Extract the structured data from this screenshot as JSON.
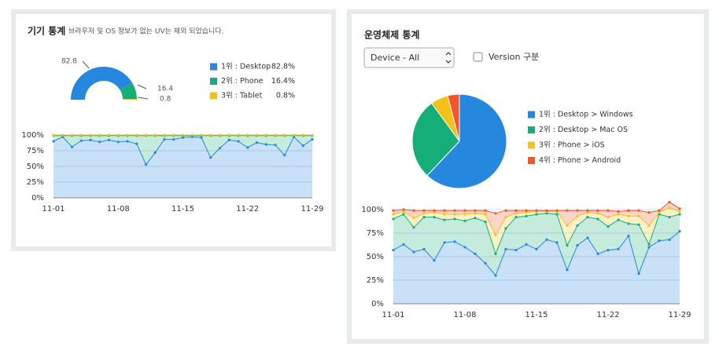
{
  "left_panel": {
    "title": "기기 통계",
    "subtitle": "브라우저 및 OS 정보가 없는 UV는 제외 되었습니다."
  },
  "right_panel": {
    "title": "운영체제 통계",
    "select": "Device - All",
    "checkbox": "Version 구분"
  },
  "chart_data": [
    {
      "type": "donut",
      "categories": [
        "1위 : Desktop",
        "2위 : Phone",
        "3위 : Tablet"
      ],
      "values": [
        82.8,
        16.4,
        0.8
      ],
      "value_labels": [
        "82.8%",
        "16.4%",
        "0.8%"
      ],
      "colors": [
        "#2587dd",
        "#16ae78",
        "#f2c21b"
      ]
    },
    {
      "type": "area",
      "categories": [
        "11-01",
        null,
        null,
        null,
        null,
        null,
        null,
        "11-08",
        null,
        null,
        null,
        null,
        null,
        null,
        "11-15",
        null,
        null,
        null,
        null,
        null,
        null,
        "11-22",
        null,
        null,
        null,
        null,
        null,
        null,
        "11-29"
      ],
      "ylim": [
        0,
        100
      ],
      "yticks": [
        {
          "value": 0,
          "label": "0%"
        },
        {
          "value": 25,
          "label": "25%"
        },
        {
          "value": 50,
          "label": "50%"
        },
        {
          "value": 75,
          "label": "75%"
        },
        {
          "value": 100,
          "label": "100%"
        }
      ],
      "grid": true,
      "series": [
        {
          "color": "#2587dd",
          "values": [
            90,
            97,
            81,
            91,
            92,
            89,
            92,
            89,
            90,
            86,
            53,
            72,
            93,
            93,
            96,
            97,
            96,
            64,
            79,
            92,
            90,
            80,
            88,
            85,
            84,
            68,
            97,
            83,
            93
          ]
        },
        {
          "color": "#16ae78",
          "values": [
            9,
            2,
            18,
            8,
            7,
            10,
            7,
            10,
            9,
            13,
            46,
            27,
            6,
            6,
            3,
            2,
            3,
            35,
            20,
            7,
            9,
            19,
            11,
            14,
            15,
            31,
            2,
            16,
            6
          ]
        },
        {
          "color": "#f2c21b",
          "values": [
            1,
            1,
            1,
            1,
            1,
            1,
            1,
            1,
            1,
            1,
            1,
            1,
            1,
            1,
            1,
            1,
            1,
            1,
            1,
            1,
            1,
            1,
            1,
            1,
            1,
            1,
            1,
            1,
            1
          ]
        }
      ]
    },
    {
      "type": "pie",
      "categories": [
        "1위 : Desktop > Windows",
        "2위 : Desktop > Mac OS",
        "3위 : Phone > iOS",
        "4위 : Phone > Android"
      ],
      "values": [
        62,
        28,
        6,
        4
      ],
      "colors": [
        "#2587dd",
        "#16ae78",
        "#f2c21b",
        "#f2562b"
      ]
    },
    {
      "type": "area",
      "categories": [
        "11-01",
        null,
        null,
        null,
        null,
        null,
        null,
        "11-08",
        null,
        null,
        null,
        null,
        null,
        null,
        "11-15",
        null,
        null,
        null,
        null,
        null,
        null,
        "11-22",
        null,
        null,
        null,
        null,
        null,
        null,
        "11-29"
      ],
      "ylim": [
        0,
        100
      ],
      "yticks": [
        {
          "value": 0,
          "label": "0%"
        },
        {
          "value": 25,
          "label": "25%"
        },
        {
          "value": 50,
          "label": "50%"
        },
        {
          "value": 75,
          "label": "75%"
        },
        {
          "value": 100,
          "label": "100%"
        }
      ],
      "grid": true,
      "series": [
        {
          "color": "#2587dd",
          "values": [
            57,
            63,
            55,
            58,
            46,
            65,
            66,
            60,
            53,
            43,
            30,
            58,
            57,
            63,
            58,
            68,
            65,
            36,
            62,
            70,
            53,
            57,
            58,
            72,
            32,
            60,
            67,
            68,
            77
          ]
        },
        {
          "color": "#16ae78",
          "values": [
            33,
            32,
            26,
            34,
            46,
            24,
            24,
            28,
            38,
            44,
            23,
            22,
            35,
            30,
            37,
            28,
            30,
            26,
            21,
            22,
            37,
            25,
            31,
            13,
            52,
            3,
            28,
            24,
            18
          ]
        },
        {
          "color": "#f2c21b",
          "values": [
            5,
            3,
            10,
            4,
            5,
            6,
            5,
            7,
            5,
            8,
            20,
            12,
            4,
            4,
            3,
            2,
            3,
            21,
            10,
            5,
            6,
            10,
            6,
            8,
            9,
            20,
            2,
            10,
            3
          ]
        },
        {
          "color": "#f2562b",
          "values": [
            4,
            2,
            8,
            3,
            2,
            4,
            4,
            4,
            3,
            4,
            23,
            7,
            3,
            2,
            1,
            1,
            1,
            16,
            6,
            2,
            3,
            7,
            3,
            6,
            6,
            14,
            2,
            6,
            3
          ]
        }
      ]
    }
  ]
}
